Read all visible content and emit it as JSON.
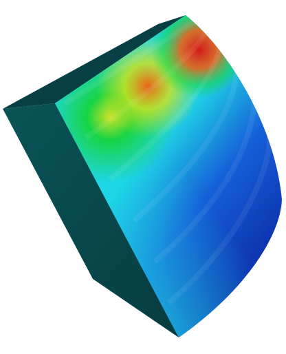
{
  "scene": {
    "background": "#ffffff",
    "object": "curved-solid-segment",
    "colormap": "jet",
    "colors": {
      "side_face": "#0a5458",
      "side_face_edge": "#063c40",
      "top_face": "#073f44",
      "deep_blue": "#0a1f9e",
      "mid_blue": "#1560d8",
      "cyan": "#1fd6e6",
      "green": "#17d43a",
      "yellow": "#d4e31c",
      "orange": "#e8641a",
      "red": "#d41a1a"
    }
  }
}
